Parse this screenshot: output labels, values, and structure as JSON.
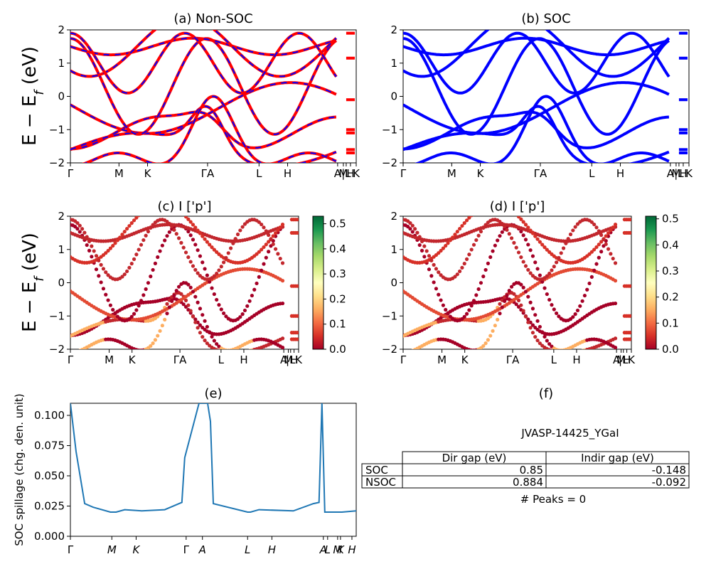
{
  "chart_data": [
    {
      "id": "a",
      "type": "line",
      "title": "(a) Non-SOC",
      "ylabel": "E − E_f (eV)",
      "ylim": [
        -2,
        2
      ],
      "yticks": [
        "2",
        "1",
        "0",
        "−1",
        "−2"
      ],
      "kpath_labels": [
        "Γ",
        "M",
        "K",
        "ΓA",
        "L",
        "H",
        "A",
        "M",
        "|L",
        "H",
        "K"
      ],
      "series": [
        {
          "values": "band curves, dashed blue over red"
        }
      ],
      "colors": {
        "nsoc": "#ff0000",
        "soc": "#0000ff"
      }
    },
    {
      "id": "b",
      "type": "line",
      "title": "(b) SOC",
      "ylim": [
        -2,
        2
      ],
      "yticks": [
        "2",
        "1",
        "0",
        "−1",
        "−2"
      ],
      "kpath_labels": [
        "Γ",
        "M",
        "K",
        "ΓA",
        "L",
        "H",
        "A",
        "M",
        "|L",
        "H",
        "K"
      ],
      "colors": {
        "soc": "#0000ff"
      }
    },
    {
      "id": "c",
      "type": "scatter",
      "title": "(c)  I ['p']",
      "ylabel": "E − E_f (eV)",
      "ylim": [
        -2,
        2
      ],
      "yticks": [
        "2",
        "1",
        "0",
        "−1",
        "−2"
      ],
      "kpath_labels": [
        "Γ",
        "M",
        "K",
        "ΓA",
        "L",
        "H",
        "A",
        "M",
        "|L",
        "H",
        "K"
      ],
      "colorbar": {
        "min": 0.0,
        "max": 0.53,
        "ticks": [
          "0.0",
          "0.1",
          "0.2",
          "0.3",
          "0.4",
          "0.5"
        ],
        "cmap": "RdYlGn"
      }
    },
    {
      "id": "d",
      "type": "scatter",
      "title": "(d) I ['p']",
      "ylim": [
        -2,
        2
      ],
      "yticks": [
        "2",
        "1",
        "0",
        "−1",
        "−2"
      ],
      "kpath_labels": [
        "Γ",
        "M",
        "K",
        "ΓA",
        "L",
        "H",
        "A",
        "M",
        "|L",
        "H",
        "K"
      ],
      "colorbar": {
        "min": 0.0,
        "max": 0.51,
        "ticks": [
          "0.0",
          "0.1",
          "0.2",
          "0.3",
          "0.4",
          "0.5"
        ],
        "cmap": "RdYlGn"
      }
    },
    {
      "id": "e",
      "type": "line",
      "title": "(e)",
      "ylabel": "SOC spillage (chg. den. unit)",
      "ylim": [
        0,
        0.11
      ],
      "yticks": [
        "0.100",
        "0.075",
        "0.050",
        "0.025",
        "0.000"
      ],
      "kpath_labels": [
        "Γ",
        "M",
        "K",
        "Γ",
        "A",
        "L",
        "H",
        "A",
        "L",
        "M",
        "K",
        "H"
      ],
      "x": [
        0,
        0.02,
        0.05,
        0.08,
        0.14,
        0.16,
        0.19,
        0.25,
        0.33,
        0.38,
        0.39,
        0.4,
        0.45,
        0.46,
        0.48,
        0.49,
        0.5,
        0.62,
        0.63,
        0.66,
        0.78,
        0.85,
        0.87,
        0.88,
        0.89,
        0.95,
        1.0
      ],
      "values": [
        0.11,
        0.07,
        0.027,
        0.024,
        0.02,
        0.02,
        0.022,
        0.021,
        0.022,
        0.027,
        0.028,
        0.065,
        0.11,
        0.11,
        0.11,
        0.095,
        0.027,
        0.02,
        0.02,
        0.022,
        0.021,
        0.027,
        0.028,
        0.11,
        0.02,
        0.02,
        0.021
      ],
      "color": "#1f77b4"
    }
  ],
  "table": {
    "title": "(f)",
    "material": "JVASP-14425_YGaI",
    "headers": [
      "Dir gap (eV)",
      "Indir gap (eV)"
    ],
    "rows": [
      {
        "label": "SOC",
        "dir": "0.85",
        "indir": "-0.148"
      },
      {
        "label": "NSOC",
        "dir": "0.884",
        "indir": "-0.092"
      }
    ],
    "peaks": "# Peaks = 0"
  }
}
